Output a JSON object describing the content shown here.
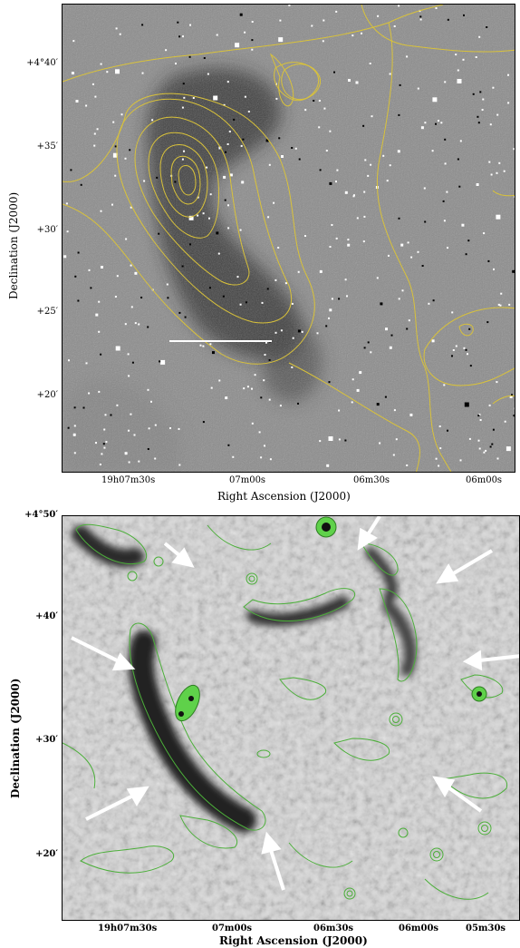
{
  "top_panel": {
    "y_ticks": [
      "+4°40′",
      "+35′",
      "+30′",
      "+25′",
      "+20′"
    ],
    "x_ticks": [
      "19h07m30s",
      "07m00s",
      "06m30s",
      "06m00s"
    ],
    "xlabel": "Right Ascension (J2000)",
    "ylabel": "Declination (J2000)",
    "contour_color": "#d9c23a",
    "scale_bar_color": "#ffffff"
  },
  "bottom_panel": {
    "y_ticks": [
      "+4°50′",
      "+40′",
      "+30′",
      "+20′"
    ],
    "x_ticks": [
      "19h07m30s",
      "07m00s",
      "06m30s",
      "06m00s",
      "05m30s"
    ],
    "xlabel": "Right Ascension (J2000)",
    "ylabel": "Declination (J2000)",
    "contour_color": "#4caf3a",
    "arrow_color": "#ffffff"
  }
}
